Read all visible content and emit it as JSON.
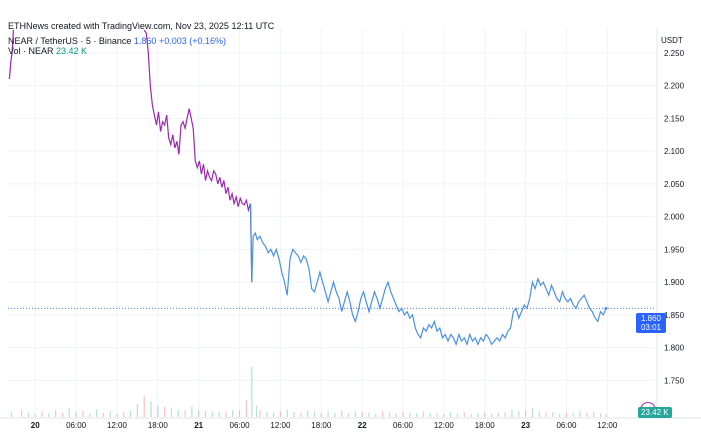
{
  "header": {
    "credit": "ETHNews created with TradingView.com, Nov 23, 2025 12:11 UTC",
    "symbol": "NEAR / TetherUS · 5 · Binance",
    "last_price": "1.860",
    "change": "+0.003 (+0.16%)",
    "vol_label": "Vol · NEAR",
    "vol_value": "23.42 K"
  },
  "price_badge": {
    "price": "1.860",
    "countdown": "03:01"
  },
  "vol_badge": "23.42 K",
  "colors": {
    "up": "#9c27b0",
    "down": "#4a90e2",
    "vol_up": "#26a69a",
    "vol_down": "#ef5350"
  },
  "chart_data": {
    "type": "line",
    "y_axis_unit": "USDT",
    "ylim": [
      1.72,
      2.285
    ],
    "y_ticks": [
      "2.250",
      "2.200",
      "2.150",
      "2.100",
      "2.050",
      "2.000",
      "1.950",
      "1.900",
      "1.850",
      "1.800",
      "1.750"
    ],
    "y_tick_values": [
      2.25,
      2.2,
      2.15,
      2.1,
      2.05,
      2.0,
      1.95,
      1.9,
      1.85,
      1.8,
      1.75
    ],
    "x_ticks": [
      "20",
      "06:00",
      "12:00",
      "18:00",
      "21",
      "06:00",
      "12:00",
      "18:00",
      "22",
      "06:00",
      "12:00",
      "18:00",
      "23",
      "06:00",
      "12:00"
    ],
    "x_tick_hours": [
      0,
      6,
      12,
      18,
      24,
      30,
      36,
      42,
      48,
      54,
      60,
      66,
      72,
      78,
      84
    ],
    "xlim_hours": [
      -4,
      91
    ],
    "series": [
      {
        "color_role": "mixed",
        "points": [
          [
            -3.8,
            2.21
          ],
          [
            -3.6,
            2.235
          ],
          [
            -3.4,
            2.25
          ],
          [
            -3.2,
            2.285
          ],
          [
            16.0,
            2.285
          ],
          [
            16.3,
            2.28
          ],
          [
            16.6,
            2.25
          ],
          [
            16.9,
            2.2
          ],
          [
            17.2,
            2.17
          ],
          [
            17.5,
            2.155
          ],
          [
            17.8,
            2.14
          ],
          [
            18.1,
            2.16
          ],
          [
            18.4,
            2.13
          ],
          [
            18.7,
            2.145
          ],
          [
            19.0,
            2.14
          ],
          [
            19.3,
            2.155
          ],
          [
            19.6,
            2.12
          ],
          [
            19.9,
            2.11
          ],
          [
            20.2,
            2.125
          ],
          [
            20.5,
            2.105
          ],
          [
            20.8,
            2.115
          ],
          [
            21.1,
            2.095
          ],
          [
            21.4,
            2.14
          ],
          [
            21.7,
            2.145
          ],
          [
            22.0,
            2.135
          ],
          [
            22.3,
            2.15
          ],
          [
            22.6,
            2.165
          ],
          [
            22.9,
            2.15
          ],
          [
            23.2,
            2.135
          ],
          [
            23.5,
            2.085
          ],
          [
            23.8,
            2.075
          ],
          [
            24.1,
            2.085
          ],
          [
            24.4,
            2.065
          ],
          [
            24.7,
            2.08
          ],
          [
            25.0,
            2.055
          ],
          [
            25.3,
            2.07
          ],
          [
            25.6,
            2.06
          ],
          [
            25.9,
            2.055
          ],
          [
            26.2,
            2.07
          ],
          [
            26.5,
            2.065
          ],
          [
            26.8,
            2.05
          ],
          [
            27.1,
            2.06
          ],
          [
            27.4,
            2.045
          ],
          [
            27.7,
            2.055
          ],
          [
            28.0,
            2.035
          ],
          [
            28.3,
            2.045
          ],
          [
            28.6,
            2.025
          ],
          [
            28.9,
            2.035
          ],
          [
            29.2,
            2.02
          ],
          [
            29.5,
            2.03
          ],
          [
            29.8,
            2.015
          ],
          [
            30.1,
            2.028
          ],
          [
            30.4,
            2.02
          ],
          [
            30.7,
            2.018
          ],
          [
            31.0,
            2.025
          ],
          [
            31.3,
            2.01
          ],
          [
            31.6,
            2.02
          ],
          [
            31.8,
            1.9
          ],
          [
            32.0,
            1.97
          ],
          [
            32.3,
            1.975
          ],
          [
            32.6,
            1.965
          ],
          [
            33.0,
            1.97
          ],
          [
            33.4,
            1.96
          ],
          [
            33.8,
            1.955
          ],
          [
            34.2,
            1.945
          ],
          [
            34.6,
            1.95
          ],
          [
            35.0,
            1.94
          ],
          [
            35.4,
            1.95
          ],
          [
            35.8,
            1.935
          ],
          [
            36.2,
            1.915
          ],
          [
            36.6,
            1.9
          ],
          [
            37.0,
            1.88
          ],
          [
            37.4,
            1.935
          ],
          [
            37.8,
            1.95
          ],
          [
            38.2,
            1.945
          ],
          [
            38.6,
            1.94
          ],
          [
            39.0,
            1.93
          ],
          [
            39.4,
            1.94
          ],
          [
            39.8,
            1.935
          ],
          [
            40.2,
            1.92
          ],
          [
            40.6,
            1.89
          ],
          [
            41.0,
            1.885
          ],
          [
            41.4,
            1.9
          ],
          [
            41.8,
            1.915
          ],
          [
            42.2,
            1.9
          ],
          [
            42.6,
            1.885
          ],
          [
            43.0,
            1.87
          ],
          [
            43.4,
            1.885
          ],
          [
            43.8,
            1.9
          ],
          [
            44.2,
            1.885
          ],
          [
            44.6,
            1.875
          ],
          [
            45.0,
            1.855
          ],
          [
            45.4,
            1.87
          ],
          [
            45.8,
            1.885
          ],
          [
            46.2,
            1.87
          ],
          [
            46.6,
            1.85
          ],
          [
            47.0,
            1.84
          ],
          [
            47.4,
            1.855
          ],
          [
            47.8,
            1.875
          ],
          [
            48.2,
            1.885
          ],
          [
            48.6,
            1.87
          ],
          [
            49.0,
            1.855
          ],
          [
            49.4,
            1.87
          ],
          [
            49.8,
            1.885
          ],
          [
            50.2,
            1.875
          ],
          [
            50.6,
            1.86
          ],
          [
            51.0,
            1.875
          ],
          [
            51.4,
            1.89
          ],
          [
            51.8,
            1.9
          ],
          [
            52.2,
            1.885
          ],
          [
            52.6,
            1.875
          ],
          [
            53.0,
            1.865
          ],
          [
            53.4,
            1.855
          ],
          [
            53.8,
            1.86
          ],
          [
            54.2,
            1.85
          ],
          [
            54.6,
            1.855
          ],
          [
            55.0,
            1.845
          ],
          [
            55.4,
            1.85
          ],
          [
            55.8,
            1.83
          ],
          [
            56.2,
            1.82
          ],
          [
            56.6,
            1.815
          ],
          [
            57.0,
            1.83
          ],
          [
            57.4,
            1.825
          ],
          [
            57.8,
            1.835
          ],
          [
            58.2,
            1.83
          ],
          [
            58.6,
            1.84
          ],
          [
            59.0,
            1.825
          ],
          [
            59.4,
            1.83
          ],
          [
            59.8,
            1.815
          ],
          [
            60.2,
            1.82
          ],
          [
            60.6,
            1.81
          ],
          [
            61.0,
            1.82
          ],
          [
            61.4,
            1.815
          ],
          [
            61.8,
            1.805
          ],
          [
            62.2,
            1.82
          ],
          [
            62.6,
            1.81
          ],
          [
            63.0,
            1.815
          ],
          [
            63.4,
            1.805
          ],
          [
            63.8,
            1.82
          ],
          [
            64.2,
            1.81
          ],
          [
            64.6,
            1.815
          ],
          [
            65.0,
            1.805
          ],
          [
            65.4,
            1.815
          ],
          [
            65.8,
            1.81
          ],
          [
            66.2,
            1.82
          ],
          [
            66.6,
            1.815
          ],
          [
            67.0,
            1.805
          ],
          [
            67.4,
            1.81
          ],
          [
            67.8,
            1.815
          ],
          [
            68.2,
            1.81
          ],
          [
            68.6,
            1.82
          ],
          [
            69.0,
            1.815
          ],
          [
            69.4,
            1.825
          ],
          [
            69.8,
            1.83
          ],
          [
            70.2,
            1.855
          ],
          [
            70.6,
            1.86
          ],
          [
            71.0,
            1.845
          ],
          [
            71.4,
            1.855
          ],
          [
            71.8,
            1.865
          ],
          [
            72.2,
            1.86
          ],
          [
            72.6,
            1.875
          ],
          [
            73.0,
            1.9
          ],
          [
            73.4,
            1.89
          ],
          [
            73.8,
            1.905
          ],
          [
            74.2,
            1.895
          ],
          [
            74.6,
            1.9
          ],
          [
            75.0,
            1.89
          ],
          [
            75.4,
            1.88
          ],
          [
            75.8,
            1.895
          ],
          [
            76.2,
            1.885
          ],
          [
            76.6,
            1.875
          ],
          [
            77.0,
            1.87
          ],
          [
            77.4,
            1.885
          ],
          [
            77.8,
            1.875
          ],
          [
            78.2,
            1.87
          ],
          [
            78.6,
            1.875
          ],
          [
            79.0,
            1.865
          ],
          [
            79.4,
            1.86
          ],
          [
            79.8,
            1.87
          ],
          [
            80.2,
            1.875
          ],
          [
            80.6,
            1.88
          ],
          [
            81.0,
            1.87
          ],
          [
            81.4,
            1.86
          ],
          [
            81.8,
            1.855
          ],
          [
            82.2,
            1.845
          ],
          [
            82.6,
            1.84
          ],
          [
            83.0,
            1.855
          ],
          [
            83.4,
            1.85
          ],
          [
            83.8,
            1.86
          ]
        ]
      }
    ],
    "volume": [
      [
        -3.5,
        6
      ],
      [
        -2,
        10
      ],
      [
        -1,
        6
      ],
      [
        0,
        4
      ],
      [
        1,
        8
      ],
      [
        2,
        5
      ],
      [
        3,
        10
      ],
      [
        4,
        6
      ],
      [
        5,
        12
      ],
      [
        6,
        7
      ],
      [
        7,
        9
      ],
      [
        8,
        5
      ],
      [
        9,
        11
      ],
      [
        10,
        6
      ],
      [
        11,
        8
      ],
      [
        12,
        4
      ],
      [
        13,
        7
      ],
      [
        14,
        9
      ],
      [
        15,
        18
      ],
      [
        16,
        30
      ],
      [
        17,
        22
      ],
      [
        18,
        16
      ],
      [
        19,
        14
      ],
      [
        20,
        12
      ],
      [
        21,
        10
      ],
      [
        22,
        9
      ],
      [
        23,
        15
      ],
      [
        24,
        10
      ],
      [
        25,
        9
      ],
      [
        26,
        8
      ],
      [
        27,
        7
      ],
      [
        28,
        8
      ],
      [
        29,
        10
      ],
      [
        30,
        9
      ],
      [
        31,
        24
      ],
      [
        31.8,
        70
      ],
      [
        32.5,
        16
      ],
      [
        33,
        10
      ],
      [
        34,
        7
      ],
      [
        35,
        6
      ],
      [
        36,
        8
      ],
      [
        37,
        11
      ],
      [
        38,
        7
      ],
      [
        39,
        6
      ],
      [
        40,
        9
      ],
      [
        41,
        8
      ],
      [
        42,
        5
      ],
      [
        43,
        7
      ],
      [
        44,
        6
      ],
      [
        45,
        9
      ],
      [
        46,
        5
      ],
      [
        47,
        8
      ],
      [
        48,
        7
      ],
      [
        49,
        6
      ],
      [
        50,
        5
      ],
      [
        51,
        8
      ],
      [
        52,
        6
      ],
      [
        53,
        5
      ],
      [
        54,
        7
      ],
      [
        55,
        6
      ],
      [
        56,
        5
      ],
      [
        57,
        8
      ],
      [
        58,
        6
      ],
      [
        59,
        5
      ],
      [
        60,
        4
      ],
      [
        61,
        7
      ],
      [
        62,
        5
      ],
      [
        63,
        6
      ],
      [
        64,
        4
      ],
      [
        65,
        5
      ],
      [
        66,
        6
      ],
      [
        67,
        4
      ],
      [
        68,
        5
      ],
      [
        69,
        7
      ],
      [
        70,
        10
      ],
      [
        71,
        8
      ],
      [
        72,
        9
      ],
      [
        73,
        12
      ],
      [
        74,
        8
      ],
      [
        75,
        6
      ],
      [
        76,
        7
      ],
      [
        77,
        5
      ],
      [
        78,
        6
      ],
      [
        79,
        5
      ],
      [
        80,
        8
      ],
      [
        81,
        6
      ],
      [
        82,
        7
      ],
      [
        83,
        5
      ],
      [
        83.8,
        4
      ]
    ],
    "last_price": 1.86
  }
}
